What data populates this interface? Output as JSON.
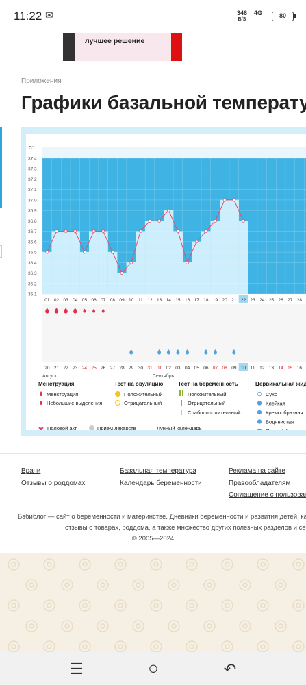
{
  "status": {
    "time": "11:22",
    "speed_value": "346",
    "speed_unit": "B/S",
    "network": "4G",
    "battery": "80"
  },
  "ad": {
    "text": "лучшее решение"
  },
  "breadcrumb": "Приложения",
  "page_title": "Графики базальной температур",
  "chart": {
    "y_unit": "C°",
    "y_ticks": [
      "37.4",
      "37.3",
      "37.2",
      "37.1",
      "37.0",
      "36.9",
      "36.8",
      "36.7",
      "36.6",
      "36.5",
      "36.4",
      "36.3",
      "36.2",
      "36.1"
    ],
    "cycle_days": [
      "01",
      "02",
      "03",
      "04",
      "05",
      "06",
      "07",
      "08",
      "09",
      "10",
      "11",
      "12",
      "13",
      "14",
      "15",
      "16",
      "17",
      "18",
      "19",
      "20",
      "21",
      "22",
      "23",
      "24",
      "25",
      "26",
      "27",
      "28"
    ],
    "current_day": "22",
    "dates": [
      "20",
      "21",
      "22",
      "23",
      "24",
      "25",
      "26",
      "27",
      "28",
      "29",
      "30",
      "31",
      "01",
      "02",
      "03",
      "04",
      "05",
      "06",
      "07",
      "08",
      "09",
      "10",
      "11",
      "12",
      "13",
      "14",
      "15",
      "16"
    ],
    "weekend_dates": [
      "24",
      "25",
      "31",
      "01",
      "07",
      "08",
      "14",
      "15"
    ],
    "today_date": "10",
    "month_1": "Август",
    "month_2": "Сентябрь",
    "colors": {
      "fill": "#cdeefc",
      "plot_bg": "#3fb3e3",
      "line": "#e0506a",
      "rain": "#e0304a",
      "drop": "#4fa3e0"
    }
  },
  "chart_data": {
    "type": "line",
    "title": "",
    "xlabel": "",
    "ylabel": "C°",
    "ylim": [
      36.1,
      37.4
    ],
    "x": [
      1,
      2,
      3,
      4,
      5,
      6,
      7,
      8,
      9,
      10,
      11,
      12,
      13,
      14,
      15,
      16,
      17,
      18,
      19,
      20,
      21,
      22
    ],
    "values": [
      36.5,
      36.7,
      36.7,
      36.7,
      36.5,
      36.7,
      36.7,
      36.5,
      36.3,
      36.4,
      36.7,
      36.8,
      36.8,
      36.9,
      36.7,
      36.4,
      36.6,
      36.7,
      36.8,
      37.0,
      37.0,
      36.8
    ],
    "menstruation_days": [
      1,
      2,
      3,
      4,
      5,
      6,
      7
    ],
    "heavy_days": [
      1,
      2,
      3,
      4
    ],
    "mucus_days": [
      10,
      13,
      14,
      15,
      16,
      18,
      19,
      21
    ]
  },
  "legend": {
    "menstruation": {
      "title": "Менструация",
      "items": [
        "Менструация",
        "Небольшие выделения"
      ]
    },
    "ovulation": {
      "title": "Тест на овуляцию",
      "items": [
        "Положительный",
        "Отрицательный"
      ]
    },
    "pregnancy": {
      "title": "Тест на беременность",
      "items": [
        "Положительный",
        "Отрицательный",
        "Слабоположительный"
      ]
    },
    "cervical": {
      "title": "Цервикальная жидк",
      "items": [
        "Сухо",
        "Клейкая",
        "Кремообразная",
        "Водянистая",
        "Яичный белок"
      ]
    },
    "bottom": [
      "Половой акт",
      "Прием лекарств",
      "Лунный календарь"
    ]
  },
  "footer": {
    "col1": [
      "Врачи",
      "Отзывы о роддомах"
    ],
    "col2": [
      "Базальная температура",
      "Календарь беременности"
    ],
    "col3": [
      "Реклама на сайте",
      "Правообладателям",
      "Соглашение с пользовате"
    ],
    "about_line1": "Бэбиблог — сайт о беременности и материнстве. Дневники беременности и развития детей, кал",
    "about_line2": "отзывы о товарах, роддома, а также множество других полезных разделов и се",
    "about_line3": "© 2005—2024"
  },
  "nav": {
    "recents": "☰",
    "home": "○",
    "back": "↶"
  }
}
